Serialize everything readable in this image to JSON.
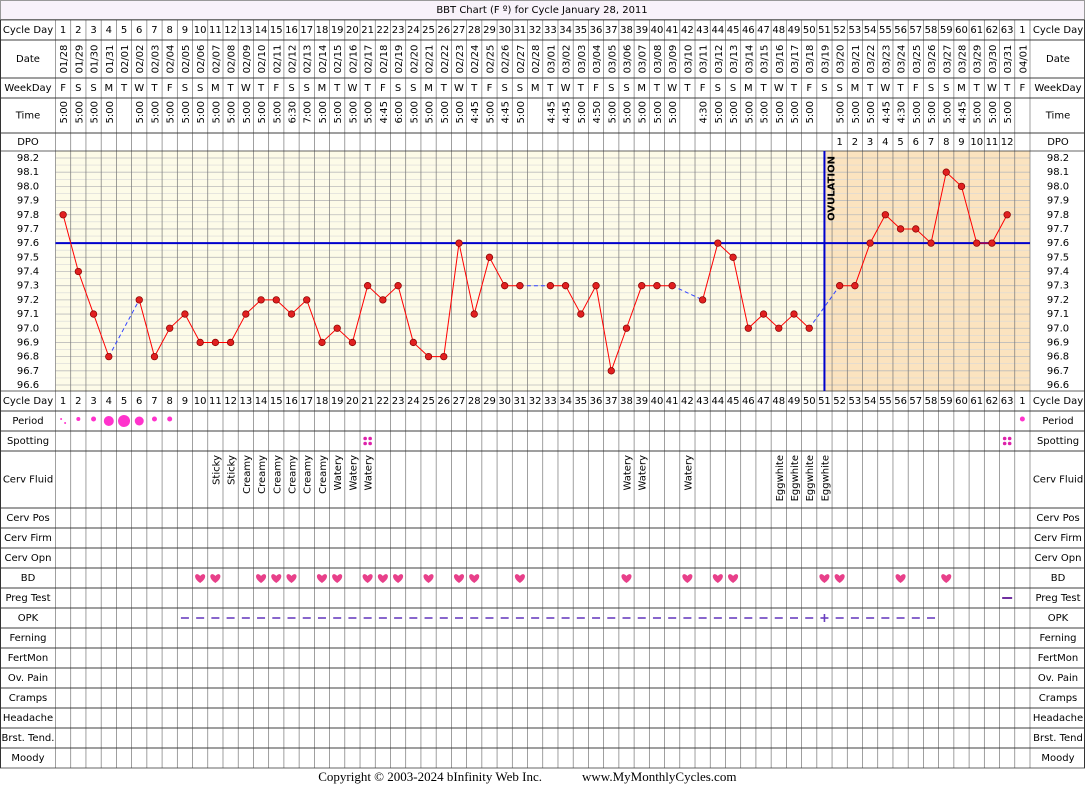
{
  "title": "BBT Chart (F º) for Cycle January 28, 2011",
  "row_labels": [
    "Cycle Day",
    "Date",
    "WeekDay",
    "Time",
    "DPO",
    "Cycle Day",
    "Period",
    "Spotting",
    "Cerv Fluid",
    "Cerv Pos",
    "Cerv Firm",
    "Cerv Opn",
    "BD",
    "Preg Test",
    "OPK",
    "Ferning",
    "FertMon",
    "Ov. Pain",
    "Cramps",
    "Headache",
    "Brst. Tend.",
    "Moody"
  ],
  "row_labels_right": [
    "Cycle Day",
    "Date",
    "WeekDay",
    "Time",
    "DPO",
    "Cycle Day",
    "Period",
    "Spotting",
    "Cerv Fluid",
    "Cerv Pos",
    "Cerv Firm",
    "Cerv Opn",
    "BD",
    "Preg Test",
    "OPK",
    "Ferning",
    "FertMon",
    "Ov. Pain",
    "Cramps",
    "Headache",
    "Brst. Tend",
    "Moody"
  ],
  "dates": [
    "01/28",
    "01/29",
    "01/30",
    "01/31",
    "02/01",
    "02/02",
    "02/03",
    "02/04",
    "02/05",
    "02/06",
    "02/07",
    "02/08",
    "02/09",
    "02/10",
    "02/11",
    "02/12",
    "02/13",
    "02/14",
    "02/15",
    "02/16",
    "02/17",
    "02/18",
    "02/19",
    "02/20",
    "02/21",
    "02/22",
    "02/23",
    "02/24",
    "02/25",
    "02/26",
    "02/27",
    "02/28",
    "03/01",
    "03/02",
    "03/03",
    "03/04",
    "03/05",
    "03/06",
    "03/07",
    "03/08",
    "03/09",
    "03/10",
    "03/11",
    "03/12",
    "03/13",
    "03/14",
    "03/15",
    "03/16",
    "03/17",
    "03/18",
    "03/19",
    "03/20",
    "03/21",
    "03/22",
    "03/23",
    "03/24",
    "03/25",
    "03/26",
    "03/27",
    "03/28",
    "03/29",
    "03/30",
    "03/31",
    "04/01"
  ],
  "weekdays": [
    "F",
    "S",
    "S",
    "M",
    "T",
    "W",
    "T",
    "F",
    "S",
    "S",
    "M",
    "T",
    "W",
    "T",
    "F",
    "S",
    "S",
    "M",
    "T",
    "W",
    "T",
    "F",
    "S",
    "S",
    "M",
    "T",
    "W",
    "T",
    "F",
    "S",
    "S",
    "M",
    "T",
    "W",
    "T",
    "F",
    "S",
    "S",
    "M",
    "T",
    "W",
    "T",
    "F",
    "S",
    "S",
    "M",
    "T",
    "W",
    "T",
    "F",
    "S",
    "S",
    "M",
    "T",
    "W",
    "T",
    "F",
    "S",
    "S",
    "M",
    "T",
    "W",
    "T",
    "F"
  ],
  "times": [
    "5:00",
    "5:00",
    "5:00",
    "5:00",
    null,
    "5:00",
    "5:00",
    "5:00",
    "5:00",
    "5:00",
    "5:00",
    "5:00",
    "5:00",
    "5:00",
    "5:00",
    "6:30",
    "7:00",
    "5:00",
    "5:00",
    "5:00",
    "5:00",
    "4:45",
    "6:00",
    "5:00",
    "5:00",
    "5:00",
    "5:00",
    "4:45",
    "5:00",
    "4:45",
    "5:00",
    null,
    "4:45",
    "4:45",
    "5:00",
    "4:50",
    "5:00",
    "5:00",
    "5:00",
    "5:00",
    "5:00",
    null,
    "4:30",
    "5:00",
    "5:00",
    "5:00",
    "5:00",
    "5:00",
    "5:00",
    "5:00",
    null,
    "5:00",
    "5:00",
    "5:00",
    "4:45",
    "4:30",
    "5:00",
    "5:00",
    "5:00",
    "4:45",
    "5:00",
    "5:00",
    "5:00",
    null
  ],
  "dpo": [
    null,
    null,
    null,
    null,
    null,
    null,
    null,
    null,
    null,
    null,
    null,
    null,
    null,
    null,
    null,
    null,
    null,
    null,
    null,
    null,
    null,
    null,
    null,
    null,
    null,
    null,
    null,
    null,
    null,
    null,
    null,
    null,
    null,
    null,
    null,
    null,
    null,
    null,
    null,
    null,
    null,
    null,
    null,
    null,
    null,
    null,
    null,
    null,
    null,
    null,
    null,
    1,
    2,
    3,
    4,
    5,
    6,
    7,
    8,
    9,
    10,
    11,
    12,
    null
  ],
  "cerv_fluid": [
    null,
    null,
    null,
    null,
    null,
    null,
    null,
    null,
    null,
    null,
    "Sticky",
    "Sticky",
    "Creamy",
    "Creamy",
    "Creamy",
    "Creamy",
    "Creamy",
    "Creamy",
    "Watery",
    "Watery",
    "Watery",
    null,
    null,
    null,
    null,
    null,
    null,
    null,
    null,
    null,
    null,
    null,
    null,
    null,
    null,
    null,
    null,
    "Watery",
    "Watery",
    null,
    null,
    "Watery",
    null,
    null,
    null,
    null,
    null,
    "Eggwhite",
    "Eggwhite",
    "Eggwhite",
    "Eggwhite",
    null,
    null,
    null,
    null,
    null,
    null,
    null,
    null,
    null,
    null,
    null,
    null,
    null
  ],
  "chart_data": {
    "type": "line",
    "color": "#ff0000",
    "categories": [
      1,
      2,
      3,
      4,
      5,
      6,
      7,
      8,
      9,
      10,
      11,
      12,
      13,
      14,
      15,
      16,
      17,
      18,
      19,
      20,
      21,
      22,
      23,
      24,
      25,
      26,
      27,
      28,
      29,
      30,
      31,
      32,
      33,
      34,
      35,
      36,
      37,
      38,
      39,
      40,
      41,
      42,
      43,
      44,
      45,
      46,
      47,
      48,
      49,
      50,
      51,
      52,
      53,
      54,
      55,
      56,
      57,
      58,
      59,
      60,
      61,
      62,
      63,
      1
    ],
    "values": [
      97.8,
      97.4,
      97.1,
      96.8,
      null,
      97.2,
      96.8,
      97.0,
      97.1,
      96.9,
      96.9,
      96.9,
      97.1,
      97.2,
      97.2,
      97.1,
      97.2,
      96.9,
      97.0,
      96.9,
      97.3,
      97.2,
      97.3,
      96.9,
      96.8,
      96.8,
      97.6,
      97.1,
      97.5,
      97.3,
      97.3,
      null,
      97.3,
      97.3,
      97.1,
      97.3,
      96.7,
      97.0,
      97.3,
      97.3,
      97.3,
      null,
      97.2,
      97.6,
      97.5,
      97.0,
      97.1,
      97.0,
      97.1,
      97.0,
      null,
      97.3,
      97.3,
      97.6,
      97.8,
      97.7,
      97.7,
      97.6,
      98.1,
      98.0,
      97.6,
      97.6,
      97.8,
      null
    ],
    "ylim": [
      96.6,
      98.2
    ],
    "yticks": [
      96.6,
      96.7,
      96.8,
      96.9,
      {
        "value": 97.0,
        "label": "97.0"
      },
      97.1,
      97.2,
      97.3,
      97.4,
      97.5,
      97.6,
      97.7,
      97.8,
      97.9,
      {
        "value": 98.0,
        "label": "98.0"
      },
      98.1,
      98.2
    ],
    "coverline": 97.6,
    "coverline_color": "#0000cc",
    "ovulation_day": 51,
    "ovulation_label": "OVULATION",
    "grid": true
  },
  "copyright": "Copyright © 2003-2024 bInfinity Web Inc.",
  "website": "www.MyMonthlyCycles.com"
}
